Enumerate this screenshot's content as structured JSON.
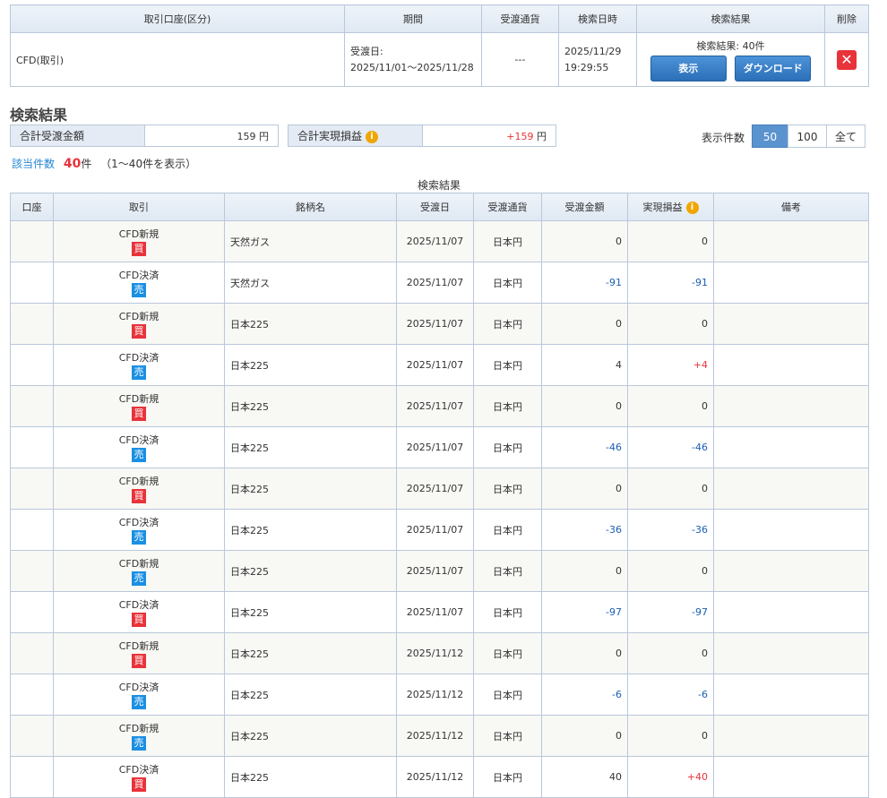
{
  "query_table": {
    "headers": [
      "取引口座(区分)",
      "期間",
      "受渡通貨",
      "検索日時",
      "検索結果",
      "削除"
    ],
    "row": {
      "account": "CFD(取引)",
      "period_label": "受渡日:",
      "period": "2025/11/01～2025/11/28",
      "currency": "---",
      "date": "2025/11/29",
      "time": "19:29:55",
      "result": "検索結果: 40件",
      "show_button": "表示",
      "download_button": "ダウンロード"
    }
  },
  "section_title": "検索結果",
  "summary": {
    "total_amount_label": "合計受渡金額",
    "total_amount": "159",
    "total_pnl_label": "合計実現損益",
    "total_pnl": "+159",
    "unit": "円"
  },
  "page_size": {
    "label": "表示件数",
    "options": [
      "50",
      "100",
      "全て"
    ]
  },
  "count": {
    "label": "該当件数",
    "value": "40",
    "unit": "件",
    "range": "（1～40件を表示）"
  },
  "results": {
    "caption": "検索結果",
    "headers": [
      "口座",
      "取引",
      "銘柄名",
      "受渡日",
      "受渡通貨",
      "受渡金額",
      "実現損益",
      "備考"
    ],
    "rows": [
      {
        "trade": "CFD新規",
        "side": "買",
        "side_color": "#e8333a",
        "name": "天然ガス",
        "date": "2025/11/07",
        "currency": "日本円",
        "amount": "0",
        "pnl": "0"
      },
      {
        "trade": "CFD決済",
        "side": "売",
        "side_color": "#1a8fe3",
        "name": "天然ガス",
        "date": "2025/11/07",
        "currency": "日本円",
        "amount": "-91",
        "pnl": "-91"
      },
      {
        "trade": "CFD新規",
        "side": "買",
        "side_color": "#e8333a",
        "name": "日本225",
        "date": "2025/11/07",
        "currency": "日本円",
        "amount": "0",
        "pnl": "0"
      },
      {
        "trade": "CFD決済",
        "side": "売",
        "side_color": "#1a8fe3",
        "name": "日本225",
        "date": "2025/11/07",
        "currency": "日本円",
        "amount": "4",
        "pnl": "+4"
      },
      {
        "trade": "CFD新規",
        "side": "買",
        "side_color": "#e8333a",
        "name": "日本225",
        "date": "2025/11/07",
        "currency": "日本円",
        "amount": "0",
        "pnl": "0"
      },
      {
        "trade": "CFD決済",
        "side": "売",
        "side_color": "#1a8fe3",
        "name": "日本225",
        "date": "2025/11/07",
        "currency": "日本円",
        "amount": "-46",
        "pnl": "-46"
      },
      {
        "trade": "CFD新規",
        "side": "買",
        "side_color": "#e8333a",
        "name": "日本225",
        "date": "2025/11/07",
        "currency": "日本円",
        "amount": "0",
        "pnl": "0"
      },
      {
        "trade": "CFD決済",
        "side": "売",
        "side_color": "#1a8fe3",
        "name": "日本225",
        "date": "2025/11/07",
        "currency": "日本円",
        "amount": "-36",
        "pnl": "-36"
      },
      {
        "trade": "CFD新規",
        "side": "売",
        "side_color": "#1a8fe3",
        "name": "日本225",
        "date": "2025/11/07",
        "currency": "日本円",
        "amount": "0",
        "pnl": "0"
      },
      {
        "trade": "CFD決済",
        "side": "買",
        "side_color": "#e8333a",
        "name": "日本225",
        "date": "2025/11/07",
        "currency": "日本円",
        "amount": "-97",
        "pnl": "-97"
      },
      {
        "trade": "CFD新規",
        "side": "買",
        "side_color": "#e8333a",
        "name": "日本225",
        "date": "2025/11/12",
        "currency": "日本円",
        "amount": "0",
        "pnl": "0"
      },
      {
        "trade": "CFD決済",
        "side": "売",
        "side_color": "#1a8fe3",
        "name": "日本225",
        "date": "2025/11/12",
        "currency": "日本円",
        "amount": "-6",
        "pnl": "-6"
      },
      {
        "trade": "CFD新規",
        "side": "売",
        "side_color": "#1a8fe3",
        "name": "日本225",
        "date": "2025/11/12",
        "currency": "日本円",
        "amount": "0",
        "pnl": "0"
      },
      {
        "trade": "CFD決済",
        "side": "買",
        "side_color": "#e8333a",
        "name": "日本225",
        "date": "2025/11/12",
        "currency": "日本円",
        "amount": "40",
        "pnl": "+40"
      }
    ]
  }
}
